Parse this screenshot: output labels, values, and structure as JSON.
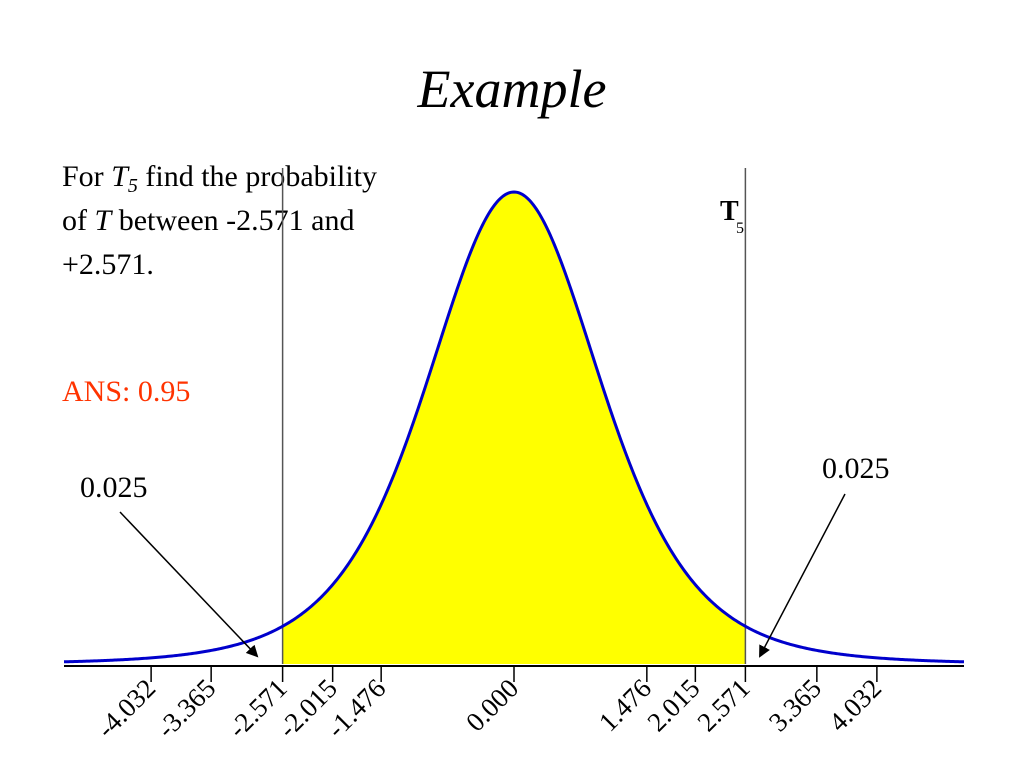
{
  "slide": {
    "title": "Example",
    "question": {
      "prefix": "For ",
      "var": "T",
      "sub": "5",
      "mid": " find the probability of ",
      "var2": "T",
      "suffix": " between -2.571 and +2.571."
    },
    "answer": "ANS: 0.95",
    "answer_color": "#ff3300"
  },
  "chart_data": {
    "type": "area",
    "distribution": "Student t",
    "degrees_of_freedom": 5,
    "distribution_label": "T",
    "distribution_label_sub": "5",
    "shaded_interval": [
      -2.571,
      2.571
    ],
    "shaded_probability": 0.95,
    "tail_labels": [
      "0.025",
      "0.025"
    ],
    "critical_lines": [
      -2.571,
      2.571
    ],
    "xlim": [
      -5,
      5
    ],
    "x_ticks": [
      -4.032,
      -3.365,
      -2.571,
      -2.015,
      -1.476,
      0.0,
      1.476,
      2.015,
      2.571,
      3.365,
      4.032
    ],
    "x_tick_labels": [
      "-4.032",
      "-3.365",
      "-2.571",
      "-2.015",
      "-1.476",
      "0.000",
      "1.476",
      "2.015",
      "2.571",
      "3.365",
      "4.032"
    ],
    "colors": {
      "curve": "#0000cc",
      "fill": "#ffff00",
      "axis": "#000000",
      "critical_line": "#555555"
    }
  }
}
